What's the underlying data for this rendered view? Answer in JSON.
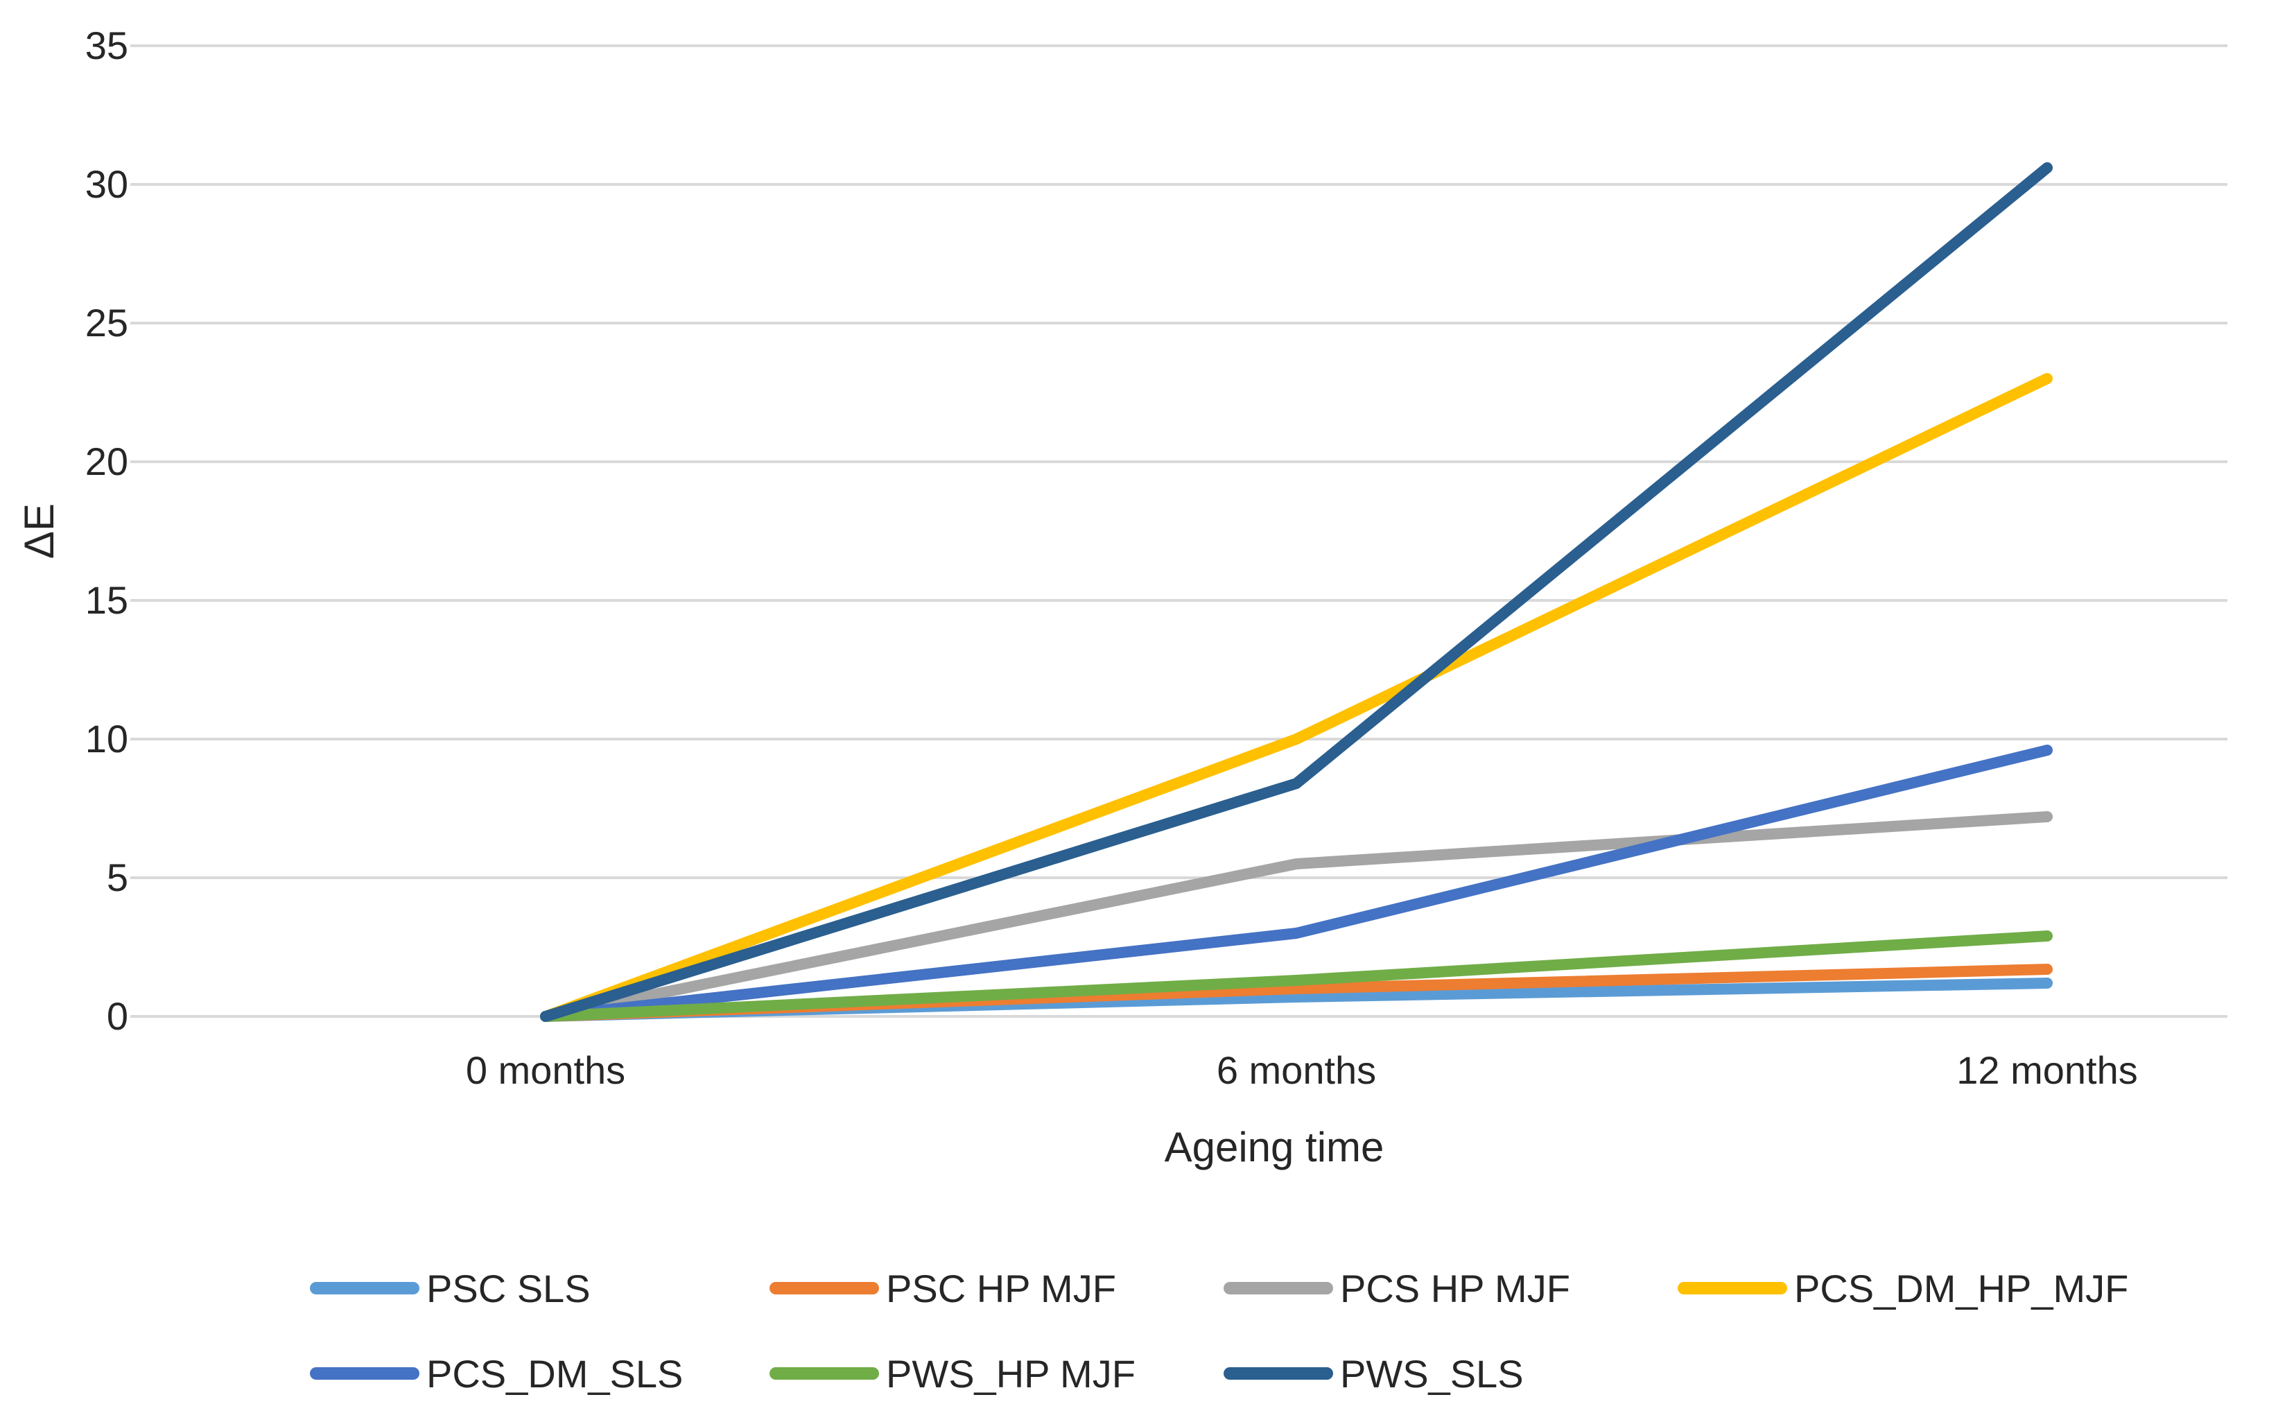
{
  "chart_data": {
    "type": "line",
    "title": "",
    "xlabel": "Ageing time",
    "ylabel": "ΔE",
    "categories": [
      "0 months",
      "6 months",
      "12 months"
    ],
    "y_axis": {
      "min": 0,
      "max": 35,
      "step": 5,
      "ticks": [
        0,
        5,
        10,
        15,
        20,
        25,
        30,
        35
      ]
    },
    "grid": true,
    "legend_position": "bottom",
    "series": [
      {
        "name": "PSC SLS",
        "color": "#5B9BD5",
        "values": [
          0,
          0.7,
          1.2
        ]
      },
      {
        "name": "PSC HP MJF",
        "color": "#ED7D31",
        "values": [
          0,
          1.0,
          1.7
        ]
      },
      {
        "name": "PCS HP MJF",
        "color": "#A5A5A5",
        "values": [
          0,
          5.5,
          7.2
        ]
      },
      {
        "name": "PCS_DM_HP_MJF",
        "color": "#FFC000",
        "values": [
          0,
          10.0,
          23.0
        ]
      },
      {
        "name": "PCS_DM_SLS",
        "color": "#4472C4",
        "values": [
          0,
          3.0,
          9.6
        ]
      },
      {
        "name": "PWS_HP MJF",
        "color": "#70AD47",
        "values": [
          0,
          1.3,
          2.9
        ]
      },
      {
        "name": "PWS_SLS",
        "color": "#2A5F8F",
        "values": [
          0,
          8.4,
          30.6
        ]
      }
    ]
  },
  "colors": {
    "gridline": "#D9D9D9",
    "tick_text": "#262626"
  }
}
